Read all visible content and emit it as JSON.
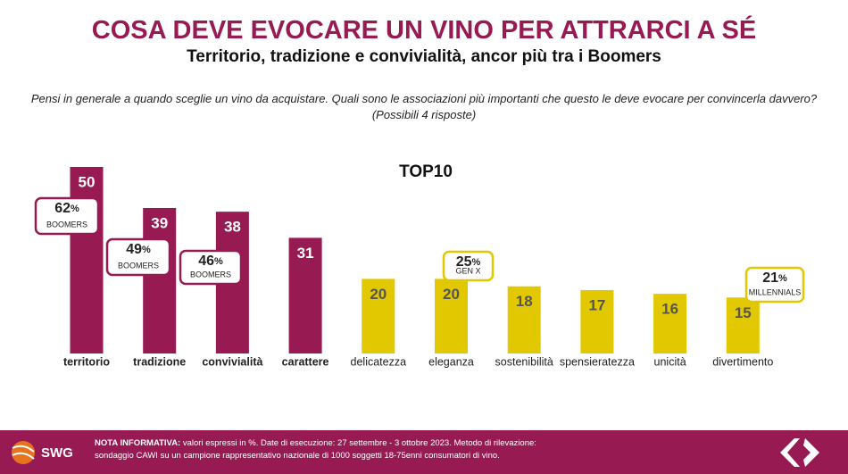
{
  "header": {
    "title": "COSA DEVE EVOCARE UN VINO PER ATTRARCI A SÉ",
    "subtitle": "Territorio, tradizione e convivialità, ancor più tra i Boomers",
    "question": "Pensi in generale a quando sceglie un vino da acquistare. Quali sono le associazioni più importanti che questo le deve evocare per convincerla davvero? (Possibili 4 risposte)"
  },
  "chart_data": {
    "type": "bar",
    "title": "TOP10",
    "categories": [
      "territorio",
      "tradizione",
      "convivialità",
      "carattere",
      "delicatezza",
      "eleganza",
      "sostenibilità",
      "spensieratezza",
      "unicità",
      "divertimento"
    ],
    "values": [
      50,
      39,
      38,
      31,
      20,
      20,
      18,
      17,
      16,
      15
    ],
    "colors": [
      "#971a52",
      "#971a52",
      "#971a52",
      "#971a52",
      "#e2c800",
      "#e2c800",
      "#e2c800",
      "#e2c800",
      "#e2c800",
      "#e2c800"
    ],
    "annotations": [
      {
        "category": "territorio",
        "value": 62,
        "unit": "%",
        "group": "BOOMERS"
      },
      {
        "category": "tradizione",
        "value": 49,
        "unit": "%",
        "group": "BOOMERS"
      },
      {
        "category": "convivialità",
        "value": 46,
        "unit": "%",
        "group": "BOOMERS"
      },
      {
        "category": "eleganza",
        "value": 25,
        "unit": "%",
        "group": "GEN X"
      },
      {
        "category": "divertimento",
        "value": 21,
        "unit": "%",
        "group": "MILLENNIALS"
      }
    ]
  },
  "footer": {
    "logo": "SWG",
    "note_label": "NOTA INFORMATIVA:",
    "note_lines": [
      "valori espressi in %. Date di esecuzione: 27 settembre - 3 ottobre 2023. Metodo di rilevazione:",
      "sondaggio CAWI su un campione rappresentativo nazionale di 1000 soggetti 18-75enni consumatori di vino."
    ]
  }
}
